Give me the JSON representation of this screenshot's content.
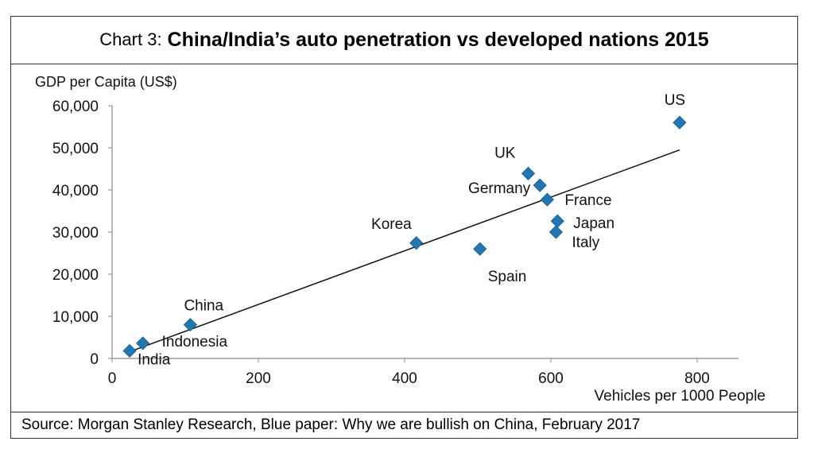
{
  "title": {
    "prefix": "Chart 3: ",
    "main": "China/India’s auto penetration vs developed nations 2015"
  },
  "source": "Source: Morgan Stanley Research, Blue paper: Why we are bullish on China, February 2017",
  "chart_data": {
    "type": "scatter",
    "xlabel": "Vehicles per 1000 People",
    "ylabel": "GDP per Capita (US$)",
    "xlim": [
      0,
      850
    ],
    "ylim": [
      0,
      60000
    ],
    "xticks": [
      "0",
      "200",
      "400",
      "600",
      "800"
    ],
    "yticks": [
      "0",
      "10,000",
      "20,000",
      "30,000",
      "40,000",
      "50,000",
      "60,000"
    ],
    "grid": false,
    "marker_color": "#1f77b4",
    "points": [
      {
        "label": "India",
        "x": 24,
        "y": 1800
      },
      {
        "label": "Indonesia",
        "x": 42,
        "y": 3600
      },
      {
        "label": "China",
        "x": 107,
        "y": 8000
      },
      {
        "label": "Korea",
        "x": 416,
        "y": 27400
      },
      {
        "label": "Spain",
        "x": 503,
        "y": 26000
      },
      {
        "label": "UK",
        "x": 569,
        "y": 43900
      },
      {
        "label": "Germany",
        "x": 585,
        "y": 41100
      },
      {
        "label": "France",
        "x": 595,
        "y": 37700
      },
      {
        "label": "Japan",
        "x": 609,
        "y": 32600
      },
      {
        "label": "Italy",
        "x": 607,
        "y": 30000
      },
      {
        "label": "US",
        "x": 776,
        "y": 56000
      }
    ],
    "trendline": {
      "x": [
        24,
        776
      ],
      "y": [
        1600,
        49500
      ]
    }
  }
}
